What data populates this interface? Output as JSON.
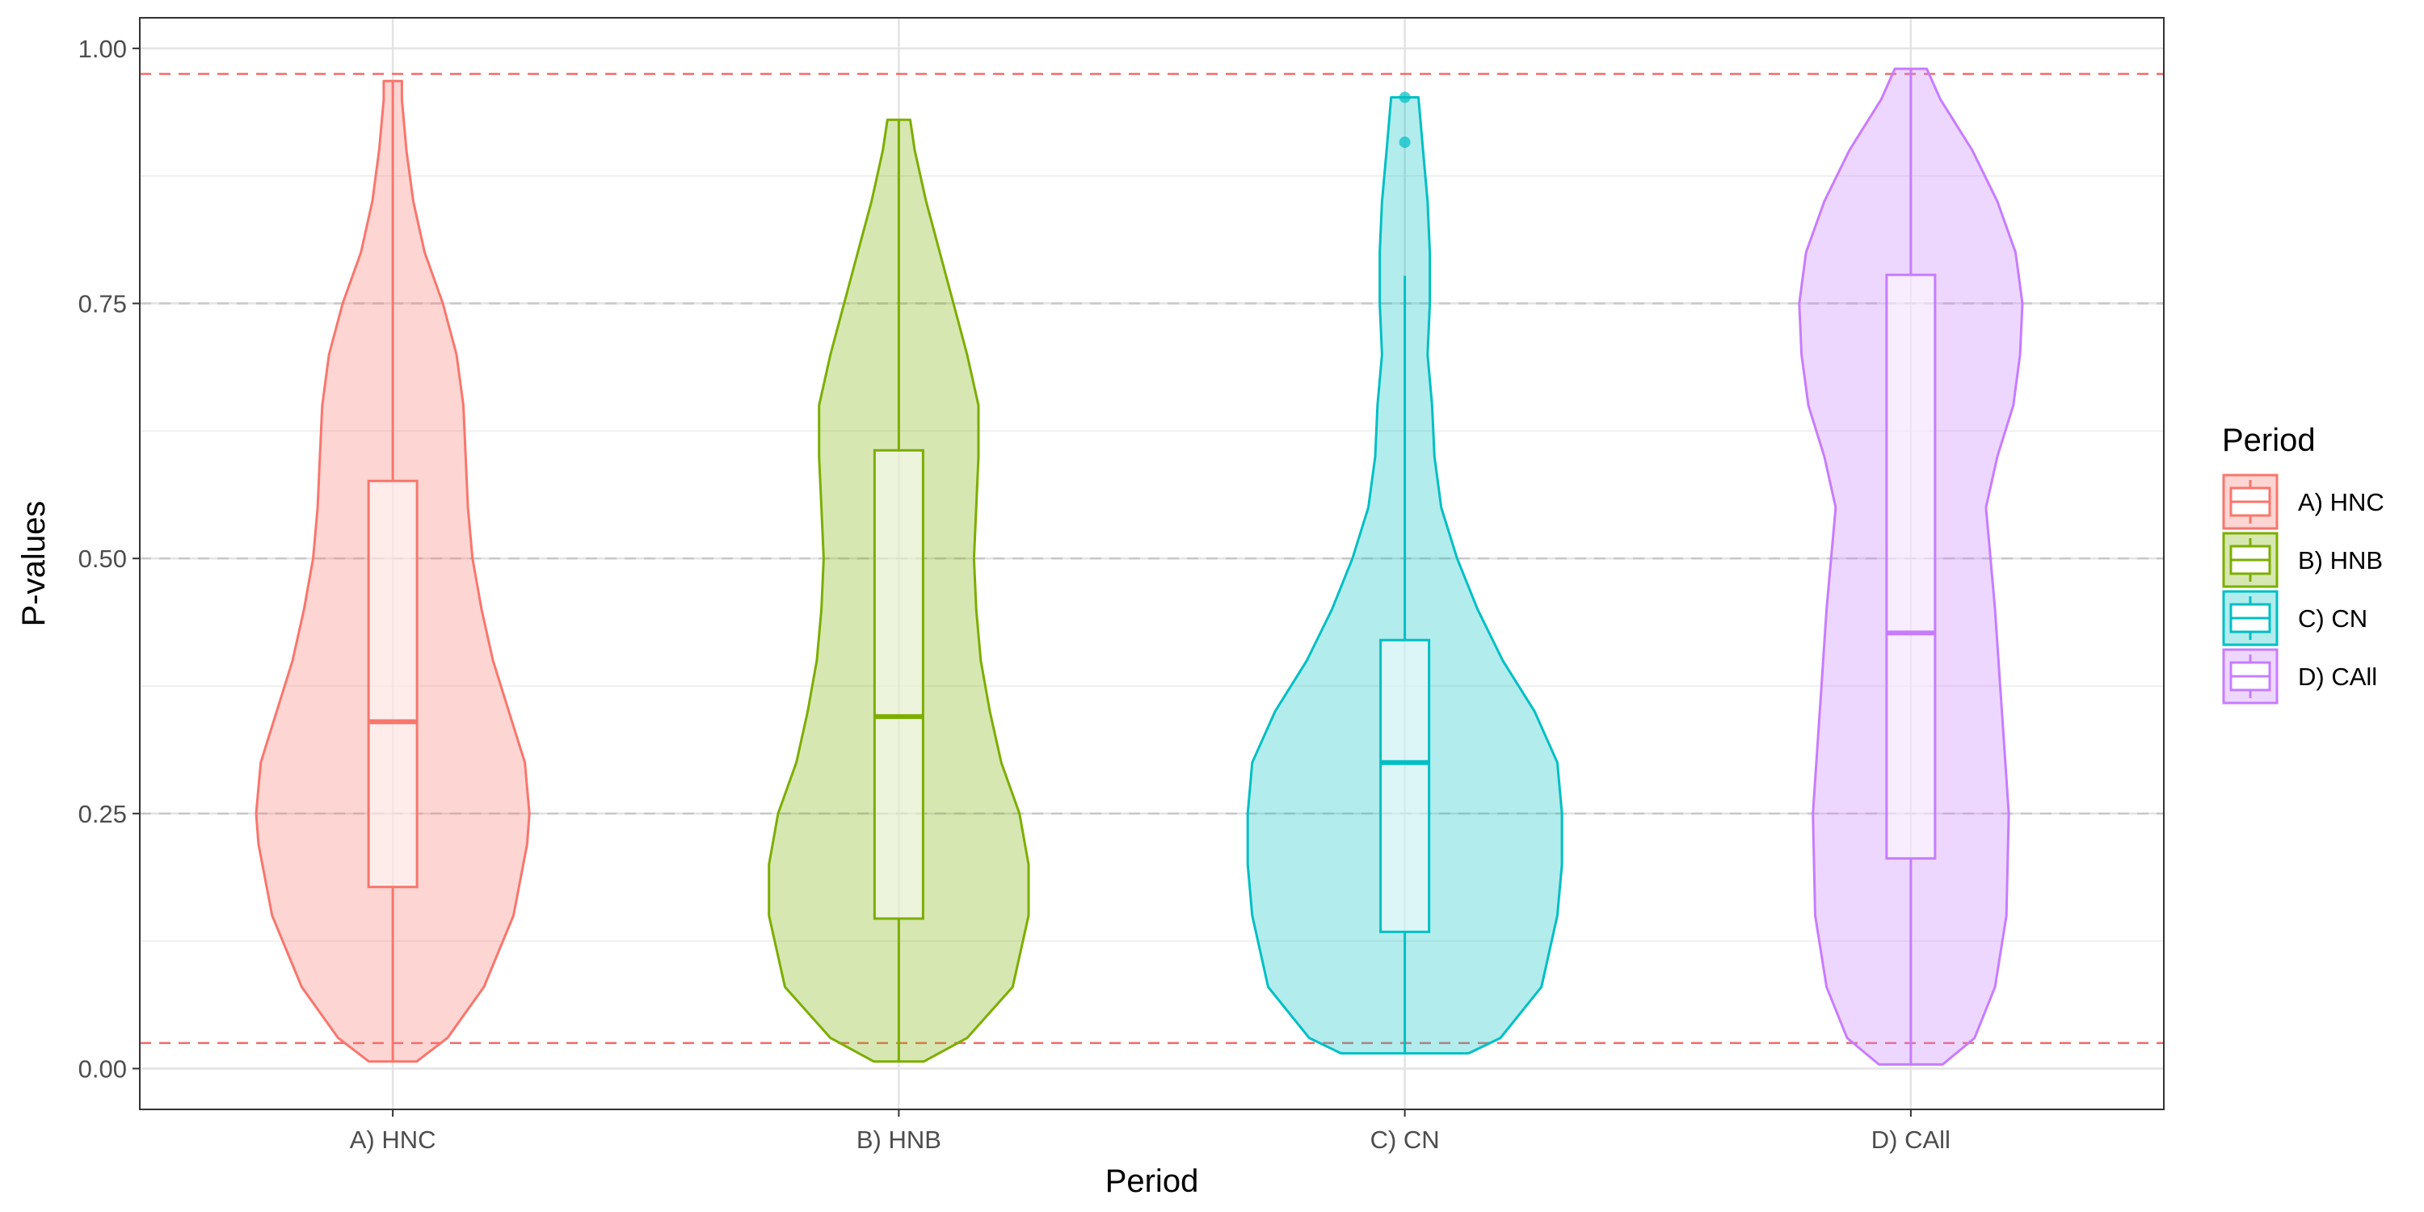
{
  "chart_data": {
    "type": "violin",
    "xlabel": "Period",
    "ylabel": "P-values",
    "categories": [
      "A) HNC",
      "B) HNB",
      "C) CN",
      "D) CAll"
    ],
    "ylim": [
      -0.04,
      1.03
    ],
    "yticks": [
      "0.00",
      "0.25",
      "0.50",
      "0.75",
      "1.00"
    ],
    "grid": true,
    "reference_lines": [
      {
        "y": 0.025,
        "color": "#f26a6a",
        "style": "dashed"
      },
      {
        "y": 0.975,
        "color": "#f26a6a",
        "style": "dashed"
      },
      {
        "y": 0.25,
        "color": "#c8c8c8",
        "style": "dashed"
      },
      {
        "y": 0.5,
        "color": "#c8c8c8",
        "style": "dashed"
      },
      {
        "y": 0.75,
        "color": "#c8c8c8",
        "style": "dashed"
      }
    ],
    "legend": {
      "title": "Period",
      "position": "right"
    },
    "series": [
      {
        "name": "A) HNC",
        "color": "#f8766d",
        "min": 0.007,
        "max": 0.968,
        "box": {
          "whisker_low": 0.007,
          "q1": 0.178,
          "median": 0.34,
          "q3": 0.576,
          "whisker_high": 0.968
        },
        "outliers": [],
        "density": [
          [
            0.007,
            0.105
          ],
          [
            0.03,
            0.24
          ],
          [
            0.08,
            0.4
          ],
          [
            0.15,
            0.53
          ],
          [
            0.22,
            0.59
          ],
          [
            0.25,
            0.6
          ],
          [
            0.3,
            0.58
          ],
          [
            0.35,
            0.51
          ],
          [
            0.4,
            0.44
          ],
          [
            0.45,
            0.39
          ],
          [
            0.5,
            0.35
          ],
          [
            0.55,
            0.33
          ],
          [
            0.6,
            0.32
          ],
          [
            0.65,
            0.31
          ],
          [
            0.7,
            0.28
          ],
          [
            0.75,
            0.22
          ],
          [
            0.8,
            0.14
          ],
          [
            0.85,
            0.09
          ],
          [
            0.9,
            0.06
          ],
          [
            0.95,
            0.04
          ],
          [
            0.968,
            0.04
          ]
        ]
      },
      {
        "name": "B) HNB",
        "color": "#7cae00",
        "min": 0.007,
        "max": 0.93,
        "box": {
          "whisker_low": 0.007,
          "q1": 0.147,
          "median": 0.345,
          "q3": 0.606,
          "whisker_high": 0.93
        },
        "outliers": [],
        "density": [
          [
            0.007,
            0.11
          ],
          [
            0.03,
            0.3
          ],
          [
            0.08,
            0.5
          ],
          [
            0.15,
            0.57
          ],
          [
            0.2,
            0.57
          ],
          [
            0.25,
            0.53
          ],
          [
            0.3,
            0.45
          ],
          [
            0.35,
            0.4
          ],
          [
            0.4,
            0.36
          ],
          [
            0.45,
            0.34
          ],
          [
            0.5,
            0.33
          ],
          [
            0.55,
            0.34
          ],
          [
            0.6,
            0.35
          ],
          [
            0.65,
            0.35
          ],
          [
            0.7,
            0.3
          ],
          [
            0.75,
            0.24
          ],
          [
            0.8,
            0.18
          ],
          [
            0.85,
            0.12
          ],
          [
            0.9,
            0.07
          ],
          [
            0.93,
            0.05
          ]
        ]
      },
      {
        "name": "C) CN",
        "color": "#00bfc4",
        "min": 0.015,
        "max": 0.952,
        "box": {
          "whisker_low": 0.015,
          "q1": 0.134,
          "median": 0.3,
          "q3": 0.42,
          "whisker_high": 0.777
        },
        "outliers": [
          0.952,
          0.908
        ],
        "density": [
          [
            0.015,
            0.28
          ],
          [
            0.03,
            0.42
          ],
          [
            0.08,
            0.6
          ],
          [
            0.15,
            0.67
          ],
          [
            0.2,
            0.69
          ],
          [
            0.25,
            0.69
          ],
          [
            0.3,
            0.67
          ],
          [
            0.35,
            0.57
          ],
          [
            0.4,
            0.43
          ],
          [
            0.45,
            0.32
          ],
          [
            0.5,
            0.23
          ],
          [
            0.55,
            0.16
          ],
          [
            0.6,
            0.13
          ],
          [
            0.65,
            0.12
          ],
          [
            0.7,
            0.1
          ],
          [
            0.75,
            0.11
          ],
          [
            0.8,
            0.11
          ],
          [
            0.85,
            0.1
          ],
          [
            0.9,
            0.08
          ],
          [
            0.952,
            0.06
          ]
        ]
      },
      {
        "name": "D) CAll",
        "color": "#c77cff",
        "min": 0.004,
        "max": 0.98,
        "box": {
          "whisker_low": 0.004,
          "q1": 0.206,
          "median": 0.427,
          "q3": 0.778,
          "whisker_high": 0.98
        },
        "outliers": [],
        "density": [
          [
            0.004,
            0.14
          ],
          [
            0.03,
            0.28
          ],
          [
            0.08,
            0.37
          ],
          [
            0.15,
            0.42
          ],
          [
            0.25,
            0.43
          ],
          [
            0.35,
            0.4
          ],
          [
            0.45,
            0.37
          ],
          [
            0.5,
            0.35
          ],
          [
            0.55,
            0.33
          ],
          [
            0.6,
            0.38
          ],
          [
            0.65,
            0.45
          ],
          [
            0.7,
            0.48
          ],
          [
            0.75,
            0.49
          ],
          [
            0.8,
            0.46
          ],
          [
            0.85,
            0.38
          ],
          [
            0.9,
            0.27
          ],
          [
            0.95,
            0.13
          ],
          [
            0.98,
            0.07
          ]
        ]
      }
    ]
  }
}
